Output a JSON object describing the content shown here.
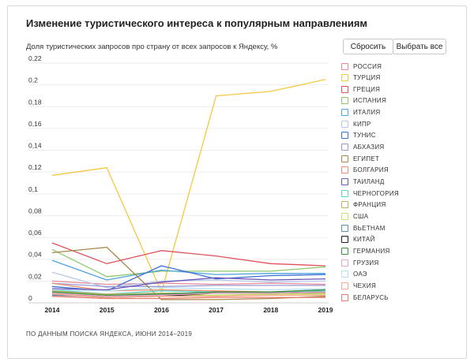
{
  "header": {
    "title": "Изменение туристического интереса к популярным направлениям",
    "subtitle": "Доля туристических запросов про страну от всех запросов к Яндексу, %"
  },
  "controls": {
    "reset_label": "Сбросить",
    "select_all_label": "Выбрать все"
  },
  "footer": {
    "source": "ПО ДАННЫМ ПОИСКА ЯНДЕКСА, ИЮНИ 2014–2019"
  },
  "chart_data": {
    "type": "line",
    "title": "Изменение туристического интереса к популярным направлениям",
    "ylabel": "Доля туристических запросов про страну от всех запросов к Яндексу, %",
    "xlabel": "",
    "x": [
      2014,
      2015,
      2016,
      2017,
      2018,
      2019
    ],
    "x_ticks": [
      "2014",
      "2015",
      "2016",
      "2017",
      "2018",
      "2019"
    ],
    "ylim": [
      0,
      0.22
    ],
    "y_ticks": [
      "0",
      "0,02",
      "0,04",
      "0,06",
      "0,08",
      "0,1",
      "0,12",
      "0,14",
      "0,16",
      "0,18",
      "0,2",
      "0,22"
    ],
    "y_tick_values": [
      0,
      0.02,
      0.04,
      0.06,
      0.08,
      0.1,
      0.12,
      0.14,
      0.16,
      0.18,
      0.2,
      0.22
    ],
    "grid": "horizontal",
    "legend_position": "right",
    "series": [
      {
        "name": "РОССИЯ",
        "color": "#e88a9a",
        "values": [
          0.02,
          0.017,
          0.018,
          0.017,
          0.018,
          0.017
        ]
      },
      {
        "name": "ТУРЦИЯ",
        "color": "#f5c842",
        "values": [
          0.117,
          0.124,
          0.01,
          0.19,
          0.194,
          0.205
        ]
      },
      {
        "name": "ГРЕЦИЯ",
        "color": "#e0515a",
        "values": [
          0.055,
          0.036,
          0.048,
          0.043,
          0.036,
          0.034
        ]
      },
      {
        "name": "ИСПАНИЯ",
        "color": "#8cc96b",
        "values": [
          0.049,
          0.024,
          0.029,
          0.029,
          0.029,
          0.033
        ]
      },
      {
        "name": "ИТАЛИЯ",
        "color": "#4ca3dd",
        "values": [
          0.039,
          0.021,
          0.03,
          0.026,
          0.027,
          0.027
        ]
      },
      {
        "name": "КИПР",
        "color": "#b7c8e8",
        "values": [
          0.028,
          0.014,
          0.02,
          0.021,
          0.019,
          0.02
        ]
      },
      {
        "name": "ТУНИС",
        "color": "#3b6fd1",
        "values": [
          0.015,
          0.011,
          0.034,
          0.022,
          0.025,
          0.026
        ]
      },
      {
        "name": "АБХАЗИЯ",
        "color": "#9a9ad6",
        "values": [
          0.018,
          0.015,
          0.015,
          0.016,
          0.016,
          0.016
        ]
      },
      {
        "name": "ЕГИПЕТ",
        "color": "#a9864a",
        "values": [
          0.046,
          0.051,
          0.003,
          0.003,
          0.004,
          0.006
        ]
      },
      {
        "name": "БОЛГАРИЯ",
        "color": "#f08c6e",
        "values": [
          0.018,
          0.011,
          0.012,
          0.011,
          0.01,
          0.01
        ]
      },
      {
        "name": "ТАИЛАНД",
        "color": "#6a55b8",
        "values": [
          0.013,
          0.012,
          0.019,
          0.023,
          0.021,
          0.022
        ]
      },
      {
        "name": "ЧЕРНОГОРИЯ",
        "color": "#5fd3c6",
        "values": [
          0.012,
          0.008,
          0.011,
          0.01,
          0.01,
          0.011
        ]
      },
      {
        "name": "ФРАНЦИЯ",
        "color": "#b9b468",
        "values": [
          0.011,
          0.008,
          0.009,
          0.009,
          0.009,
          0.009
        ]
      },
      {
        "name": "США",
        "color": "#c9e06a",
        "values": [
          0.009,
          0.007,
          0.007,
          0.007,
          0.008,
          0.008
        ]
      },
      {
        "name": "ВЬЕТНАМ",
        "color": "#5b8fb0",
        "values": [
          0.007,
          0.006,
          0.008,
          0.009,
          0.01,
          0.012
        ]
      },
      {
        "name": "КИТАЙ",
        "color": "#1e1e1e",
        "values": [
          0.008,
          0.005,
          0.006,
          0.009,
          0.009,
          0.01
        ]
      },
      {
        "name": "ГЕРМАНИЯ",
        "color": "#3d8f3d",
        "values": [
          0.01,
          0.007,
          0.008,
          0.01,
          0.01,
          0.012
        ]
      },
      {
        "name": "ГРУЗИЯ",
        "color": "#e8a3c8",
        "values": [
          0.009,
          0.006,
          0.007,
          0.009,
          0.009,
          0.01
        ]
      },
      {
        "name": "ОАЭ",
        "color": "#b6dff2",
        "values": [
          0.012,
          0.011,
          0.014,
          0.013,
          0.012,
          0.013
        ]
      },
      {
        "name": "ЧЕХИЯ",
        "color": "#f4a98a",
        "values": [
          0.008,
          0.005,
          0.006,
          0.006,
          0.007,
          0.007
        ]
      },
      {
        "name": "БЕЛАРУСЬ",
        "color": "#e87b6a",
        "values": [
          0.006,
          0.004,
          0.004,
          0.005,
          0.005,
          0.005
        ]
      }
    ]
  }
}
